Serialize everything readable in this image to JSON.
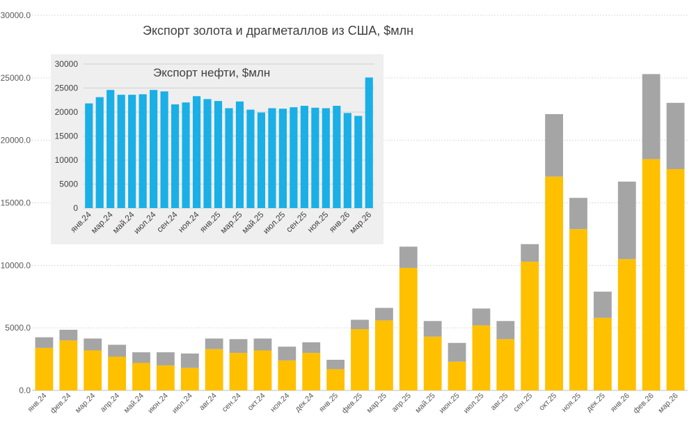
{
  "chart_data": [
    {
      "type": "bar",
      "stacked": true,
      "title": "Экспорт золота и драгметаллов из США, $млн",
      "xlabel": "",
      "ylabel": "",
      "ylim": [
        0,
        30000
      ],
      "yticks": [
        "0.0",
        "5000.0",
        "10000.0",
        "15000.0",
        "20000.0",
        "25000.0",
        "30000.0"
      ],
      "grid": true,
      "categories": [
        "янв.24",
        "фев.24",
        "мар.24",
        "апр.24",
        "май.24",
        "июн.24",
        "июл.24",
        "авг.24",
        "сен.24",
        "окт.24",
        "ноя.24",
        "дек.24",
        "янв.25",
        "фев.25",
        "мар.25",
        "апр.25",
        "май.25",
        "июн.25",
        "июл.25",
        "авг.25",
        "сен.25",
        "окт.25",
        "ноя.25",
        "дек.25",
        "янв.26",
        "фев.26",
        "мар.26"
      ],
      "series": [
        {
          "color": "#FFC000",
          "values": [
            3400,
            4000,
            3200,
            2700,
            2200,
            2000,
            1800,
            3300,
            3000,
            3200,
            2400,
            3000,
            1700,
            4900,
            5600,
            9800,
            4300,
            2300,
            5200,
            4100,
            10300,
            17100,
            12900,
            5800,
            10500,
            18500,
            17700
          ]
        },
        {
          "color": "#A5A5A5",
          "values": [
            850,
            850,
            950,
            950,
            850,
            1050,
            1150,
            850,
            1100,
            950,
            1100,
            850,
            750,
            750,
            1000,
            1700,
            1250,
            1500,
            1350,
            1450,
            1400,
            5000,
            2500,
            2100,
            6200,
            6800,
            5300
          ]
        }
      ]
    },
    {
      "type": "bar",
      "title": "Экспорт нефти, $млн",
      "xlabel": "",
      "ylabel": "",
      "ylim": [
        0,
        30000
      ],
      "yticks": [
        "0",
        "5000",
        "10000",
        "15000",
        "20000",
        "25000",
        "30000"
      ],
      "grid": true,
      "color": "#1AAFE6",
      "categories": [
        "янв.24",
        "фев.24",
        "мар.24",
        "апр.24",
        "май.24",
        "июн.24",
        "июл.24",
        "авг.24",
        "сен.24",
        "окт.24",
        "ноя.24",
        "дек.24",
        "янв.25",
        "фев.25",
        "мар.25",
        "апр.25",
        "май.25",
        "июн.25",
        "июл.25",
        "авг.25",
        "сен.25",
        "окт.25",
        "ноя.25",
        "дек.25",
        "янв.26",
        "фев.26",
        "мар.26"
      ],
      "tick_labels": [
        "янв.24",
        "мар.24",
        "май.24",
        "июл.24",
        "сен.24",
        "ноя.24",
        "янв.25",
        "мар.25",
        "май.25",
        "июл.25",
        "сен.25",
        "ноя.25",
        "янв.26",
        "мар.26"
      ],
      "values": [
        21800,
        23100,
        24600,
        23600,
        23600,
        23700,
        24600,
        24300,
        21600,
        22000,
        23300,
        22700,
        22300,
        20800,
        22200,
        20500,
        19900,
        20800,
        20700,
        21000,
        21300,
        20900,
        20800,
        21300,
        19800,
        19200,
        27200
      ]
    }
  ]
}
